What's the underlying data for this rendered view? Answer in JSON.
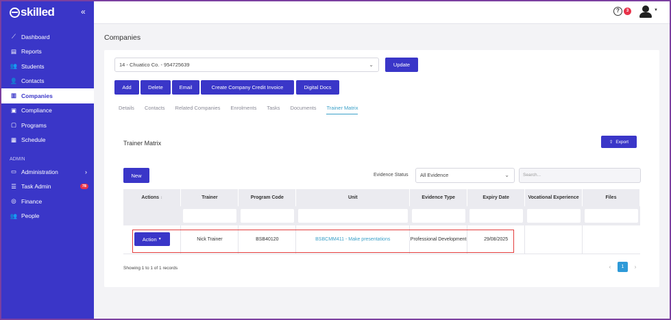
{
  "brand": {
    "name": "skilled",
    "accent": "#3a36c8",
    "collapse_icon": "«"
  },
  "sidebar": {
    "items": [
      {
        "label": "Dashboard",
        "icon": "chart-line-icon",
        "glyph": "⟋"
      },
      {
        "label": "Reports",
        "icon": "report-icon",
        "glyph": "▤"
      },
      {
        "label": "Students",
        "icon": "students-icon",
        "glyph": "👥"
      },
      {
        "label": "Contacts",
        "icon": "contacts-icon",
        "glyph": "👤"
      },
      {
        "label": "Companies",
        "icon": "companies-icon",
        "glyph": "▥"
      },
      {
        "label": "Compliance",
        "icon": "compliance-icon",
        "glyph": "▣"
      },
      {
        "label": "Programs",
        "icon": "programs-icon",
        "glyph": "▢"
      },
      {
        "label": "Schedule",
        "icon": "schedule-icon",
        "glyph": "▦"
      }
    ],
    "section_label": "ADMIN",
    "admin_items": [
      {
        "label": "Administration",
        "icon": "laptop-icon",
        "glyph": "▭"
      },
      {
        "label": "Task Admin",
        "icon": "list-icon",
        "glyph": "☰",
        "badge": "78"
      },
      {
        "label": "Finance",
        "icon": "coins-icon",
        "glyph": "◎"
      },
      {
        "label": "People",
        "icon": "people-icon",
        "glyph": "👥"
      }
    ]
  },
  "topbar": {
    "help_icon": "?",
    "notification_count": "3"
  },
  "page": {
    "title": "Companies"
  },
  "company_select": {
    "value": "14 - Chuatico Co. - 954725639"
  },
  "buttons": {
    "update": "Update",
    "add": "Add",
    "delete": "Delete",
    "email": "Email",
    "credit_invoice": "Create Company Credit Invoice",
    "digital_docs": "Digital Docs"
  },
  "tabs": [
    "Details",
    "Contacts",
    "Related Companies",
    "Enrolments",
    "Tasks",
    "Documents",
    "Trainer Matrix"
  ],
  "matrix": {
    "title": "Trainer Matrix",
    "export_label": "Export",
    "new_label": "New",
    "evidence_status_label": "Evidence Status",
    "evidence_status_value": "All Evidence",
    "search_placeholder": "Search...",
    "columns": [
      "Actions",
      "Trainer",
      "Program Code",
      "Unit",
      "Evidence Type",
      "Expiry Date",
      "Vocational Experience",
      "Files"
    ],
    "row": {
      "action": "Action",
      "trainer": "Nick Trainer",
      "program_code": "BSB40120",
      "unit": "BSBCMM411 - Make presentations",
      "evidence_type": "Professional Development",
      "expiry_date": "29/08/2025",
      "vocational_experience": "",
      "files": ""
    },
    "showing_text": "Showing 1 to 1 of 1 records",
    "current_page": "1"
  }
}
